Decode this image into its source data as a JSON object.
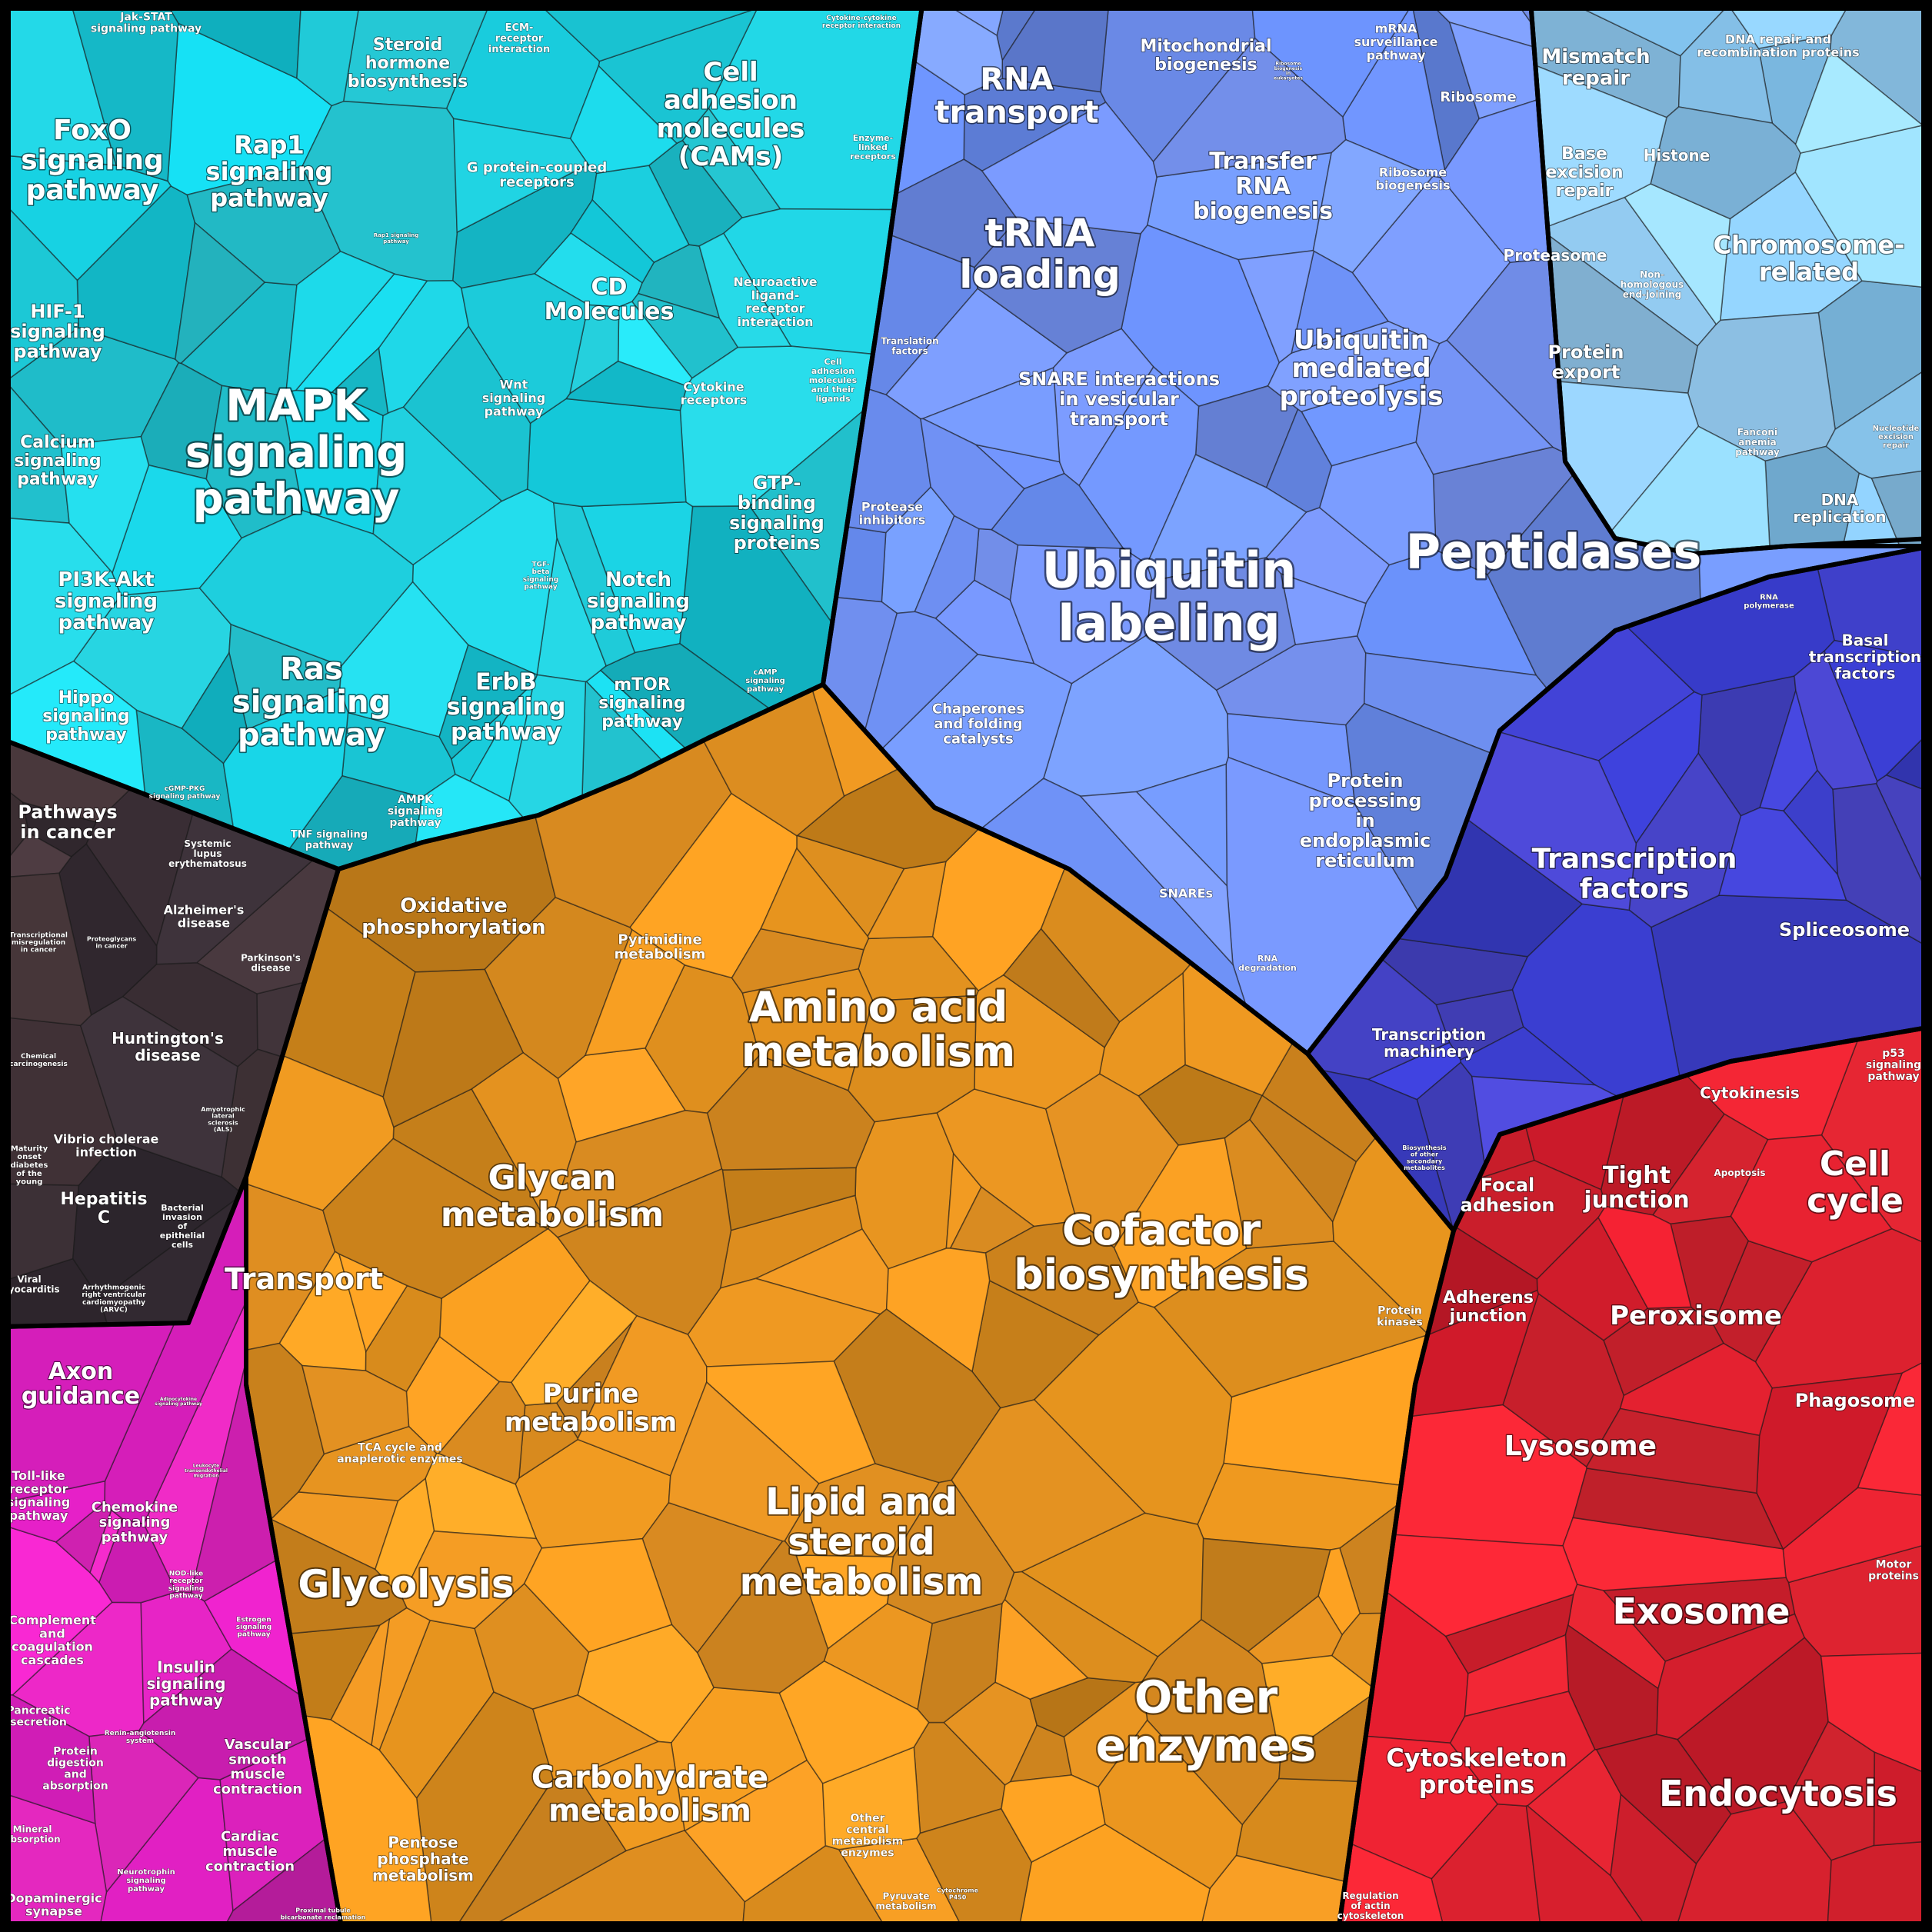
{
  "regions": [
    {
      "id": "signaling",
      "color": "#1cc9d8"
    },
    {
      "id": "cancer-disease",
      "color": "#3f3238"
    },
    {
      "id": "organismal",
      "color": "#d923b8"
    },
    {
      "id": "metabolism",
      "color": "#e49220"
    },
    {
      "id": "genetic-info",
      "color": "#6f8ff0"
    },
    {
      "id": "transcription",
      "color": "#4040c8"
    },
    {
      "id": "dna-repair",
      "color": "#8cc8f0"
    },
    {
      "id": "cellular",
      "color": "#d8202e"
    }
  ],
  "labels": [
    {
      "text": "Jak-STAT signaling pathway"
    },
    {
      "text": "FoxO signaling pathway"
    },
    {
      "text": "Rap1 signaling pathway"
    },
    {
      "text": "Rap1 signaling pathway"
    },
    {
      "text": "HIF-1 signaling pathway"
    },
    {
      "text": "MAPK signaling pathway"
    },
    {
      "text": "Calcium signaling pathway"
    },
    {
      "text": "PI3K-Akt signaling pathway"
    },
    {
      "text": "Hippo signaling pathway"
    },
    {
      "text": "Ras signaling pathway"
    },
    {
      "text": "cGMP-PKG signaling pathway"
    },
    {
      "text": "TNF signaling pathway"
    },
    {
      "text": "AMPK signaling pathway"
    },
    {
      "text": "ErbB signaling pathway"
    },
    {
      "text": "mTOR signaling pathway"
    },
    {
      "text": "Notch signaling pathway"
    },
    {
      "text": "TGF-beta signaling pathway"
    },
    {
      "text": "Wnt signaling pathway"
    },
    {
      "text": "Steroid hormone biosynthesis"
    },
    {
      "text": "ECM-receptor interaction"
    },
    {
      "text": "G protein-coupled receptors"
    },
    {
      "text": "Cell adhesion molecules (CAMs)"
    },
    {
      "text": "Cytokine-cytokine receptor interaction"
    },
    {
      "text": "Enzyme-linked receptors"
    },
    {
      "text": "CD Molecules"
    },
    {
      "text": "Neuroactive ligand-receptor interaction"
    },
    {
      "text": "Cytokine receptors"
    },
    {
      "text": "Cell adhesion molecules and their ligands"
    },
    {
      "text": "GTP-binding signaling proteins"
    },
    {
      "text": "cAMP signaling pathway"
    },
    {
      "text": "Pathways in cancer"
    },
    {
      "text": "Systemic lupus erythematosus"
    },
    {
      "text": "Alzheimer's disease"
    },
    {
      "text": "Parkinson's disease"
    },
    {
      "text": "Transcriptional misregulation in cancer"
    },
    {
      "text": "Proteoglycans in cancer"
    },
    {
      "text": "Huntington's disease"
    },
    {
      "text": "Chemical carcinogenesis"
    },
    {
      "text": "Amyotrophic lateral sclerosis (ALS)"
    },
    {
      "text": "Maturity onset diabetes of the young"
    },
    {
      "text": "Vibrio cholerae infection"
    },
    {
      "text": "Hepatitis C"
    },
    {
      "text": "Bacterial invasion of epithelial cells"
    },
    {
      "text": "Viral myocarditis"
    },
    {
      "text": "Arrhythmogenic right ventricular cardiomyopathy (ARVC)"
    },
    {
      "text": "Axon guidance"
    },
    {
      "text": "Adipocytokine signaling pathway"
    },
    {
      "text": "Toll-like receptor signaling pathway"
    },
    {
      "text": "Chemokine signaling pathway"
    },
    {
      "text": "Leukocyte transendothelial migration"
    },
    {
      "text": "NOD-like receptor signaling pathway"
    },
    {
      "text": "Complement and coagulation cascades"
    },
    {
      "text": "Estrogen signaling pathway"
    },
    {
      "text": "Insulin signaling pathway"
    },
    {
      "text": "Pancreatic secretion"
    },
    {
      "text": "Renin-angiotensin system"
    },
    {
      "text": "Protein digestion and absorption"
    },
    {
      "text": "Vascular smooth muscle contraction"
    },
    {
      "text": "Mineral absorption"
    },
    {
      "text": "Cardiac muscle contraction"
    },
    {
      "text": "Neurotrophin signaling pathway"
    },
    {
      "text": "Dopaminergic synapse"
    },
    {
      "text": "Proximal tubule bicarbonate reclamation"
    },
    {
      "text": "Oxidative phosphorylation"
    },
    {
      "text": "Pyrimidine metabolism"
    },
    {
      "text": "Amino acid metabolism"
    },
    {
      "text": "Glycan metabolism"
    },
    {
      "text": "Cofactor biosynthesis"
    },
    {
      "text": "Biosynthesis of other secondary metabolites"
    },
    {
      "text": "Transport"
    },
    {
      "text": "Purine metabolism"
    },
    {
      "text": "Protein kinases"
    },
    {
      "text": "TCA cycle and anaplerotic enzymes"
    },
    {
      "text": "Lipid and steroid metabolism"
    },
    {
      "text": "Glycolysis"
    },
    {
      "text": "Other enzymes"
    },
    {
      "text": "Carbohydrate metabolism"
    },
    {
      "text": "Other central metabolism enzymes"
    },
    {
      "text": "Pentose phosphate metabolism"
    },
    {
      "text": "Pyruvate metabolism"
    },
    {
      "text": "Cytochrome P450"
    },
    {
      "text": "RNA transport"
    },
    {
      "text": "Mitochondrial biogenesis"
    },
    {
      "text": "mRNA surveillance pathway"
    },
    {
      "text": "Ribosome biogenesis in eukaryotes"
    },
    {
      "text": "Ribosome"
    },
    {
      "text": "tRNA loading"
    },
    {
      "text": "Transfer RNA biogenesis"
    },
    {
      "text": "Ribosome biogenesis"
    },
    {
      "text": "Translation factors"
    },
    {
      "text": "SNARE interactions in vesicular transport"
    },
    {
      "text": "Ubiquitin mediated proteolysis"
    },
    {
      "text": "Proteasome"
    },
    {
      "text": "Protein export"
    },
    {
      "text": "Protease inhibitors"
    },
    {
      "text": "Ubiquitin labeling"
    },
    {
      "text": "Peptidases"
    },
    {
      "text": "Chaperones and folding catalysts"
    },
    {
      "text": "Protein processing in endoplasmic reticulum"
    },
    {
      "text": "SNAREs"
    },
    {
      "text": "RNA degradation"
    },
    {
      "text": "Mismatch repair"
    },
    {
      "text": "DNA repair and recombination proteins"
    },
    {
      "text": "Base excision repair"
    },
    {
      "text": "Histone"
    },
    {
      "text": "Chromosome-related"
    },
    {
      "text": "Non-homologous end-joining"
    },
    {
      "text": "Fanconi anemia pathway"
    },
    {
      "text": "Nucleotide excision repair"
    },
    {
      "text": "DNA replication"
    },
    {
      "text": "RNA polymerase"
    },
    {
      "text": "Basal transcription factors"
    },
    {
      "text": "Transcription factors"
    },
    {
      "text": "Spliceosome"
    },
    {
      "text": "Transcription machinery"
    },
    {
      "text": "p53 signaling pathway"
    },
    {
      "text": "Cytokinesis"
    },
    {
      "text": "Cell cycle"
    },
    {
      "text": "Focal adhesion"
    },
    {
      "text": "Tight junction"
    },
    {
      "text": "Apoptosis"
    },
    {
      "text": "Adherens junction"
    },
    {
      "text": "Peroxisome"
    },
    {
      "text": "Phagosome"
    },
    {
      "text": "Lysosome"
    },
    {
      "text": "Motor proteins"
    },
    {
      "text": "Exosome"
    },
    {
      "text": "Cytoskeleton proteins"
    },
    {
      "text": "Endocytosis"
    },
    {
      "text": "Regulation of actin cytoskeleton"
    }
  ]
}
